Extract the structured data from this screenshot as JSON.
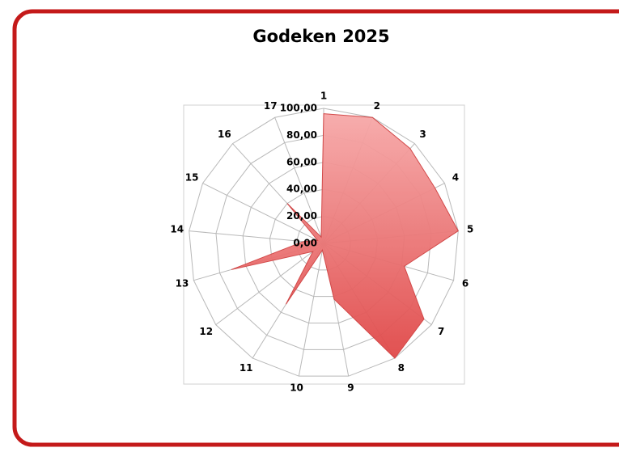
{
  "chart_data": {
    "type": "radar",
    "title": "Godeken 2025",
    "categories": [
      "1",
      "2",
      "3",
      "4",
      "5",
      "6",
      "7",
      "8",
      "9",
      "10",
      "11",
      "12",
      "13",
      "14",
      "15",
      "16",
      "17"
    ],
    "values": [
      96,
      100,
      95,
      92,
      100,
      62,
      93,
      100,
      42,
      5,
      53,
      10,
      71,
      15,
      5,
      40,
      5
    ],
    "color": "#e85a5a",
    "ylim": [
      0,
      100
    ],
    "yticks": [
      {
        "value": 0,
        "label": "0,00"
      },
      {
        "value": 20,
        "label": "20,00"
      },
      {
        "value": 40,
        "label": "40,00"
      },
      {
        "value": 60,
        "label": "60,00"
      },
      {
        "value": 80,
        "label": "80,00"
      },
      {
        "value": 100,
        "label": "100,00"
      }
    ],
    "grid": true
  }
}
